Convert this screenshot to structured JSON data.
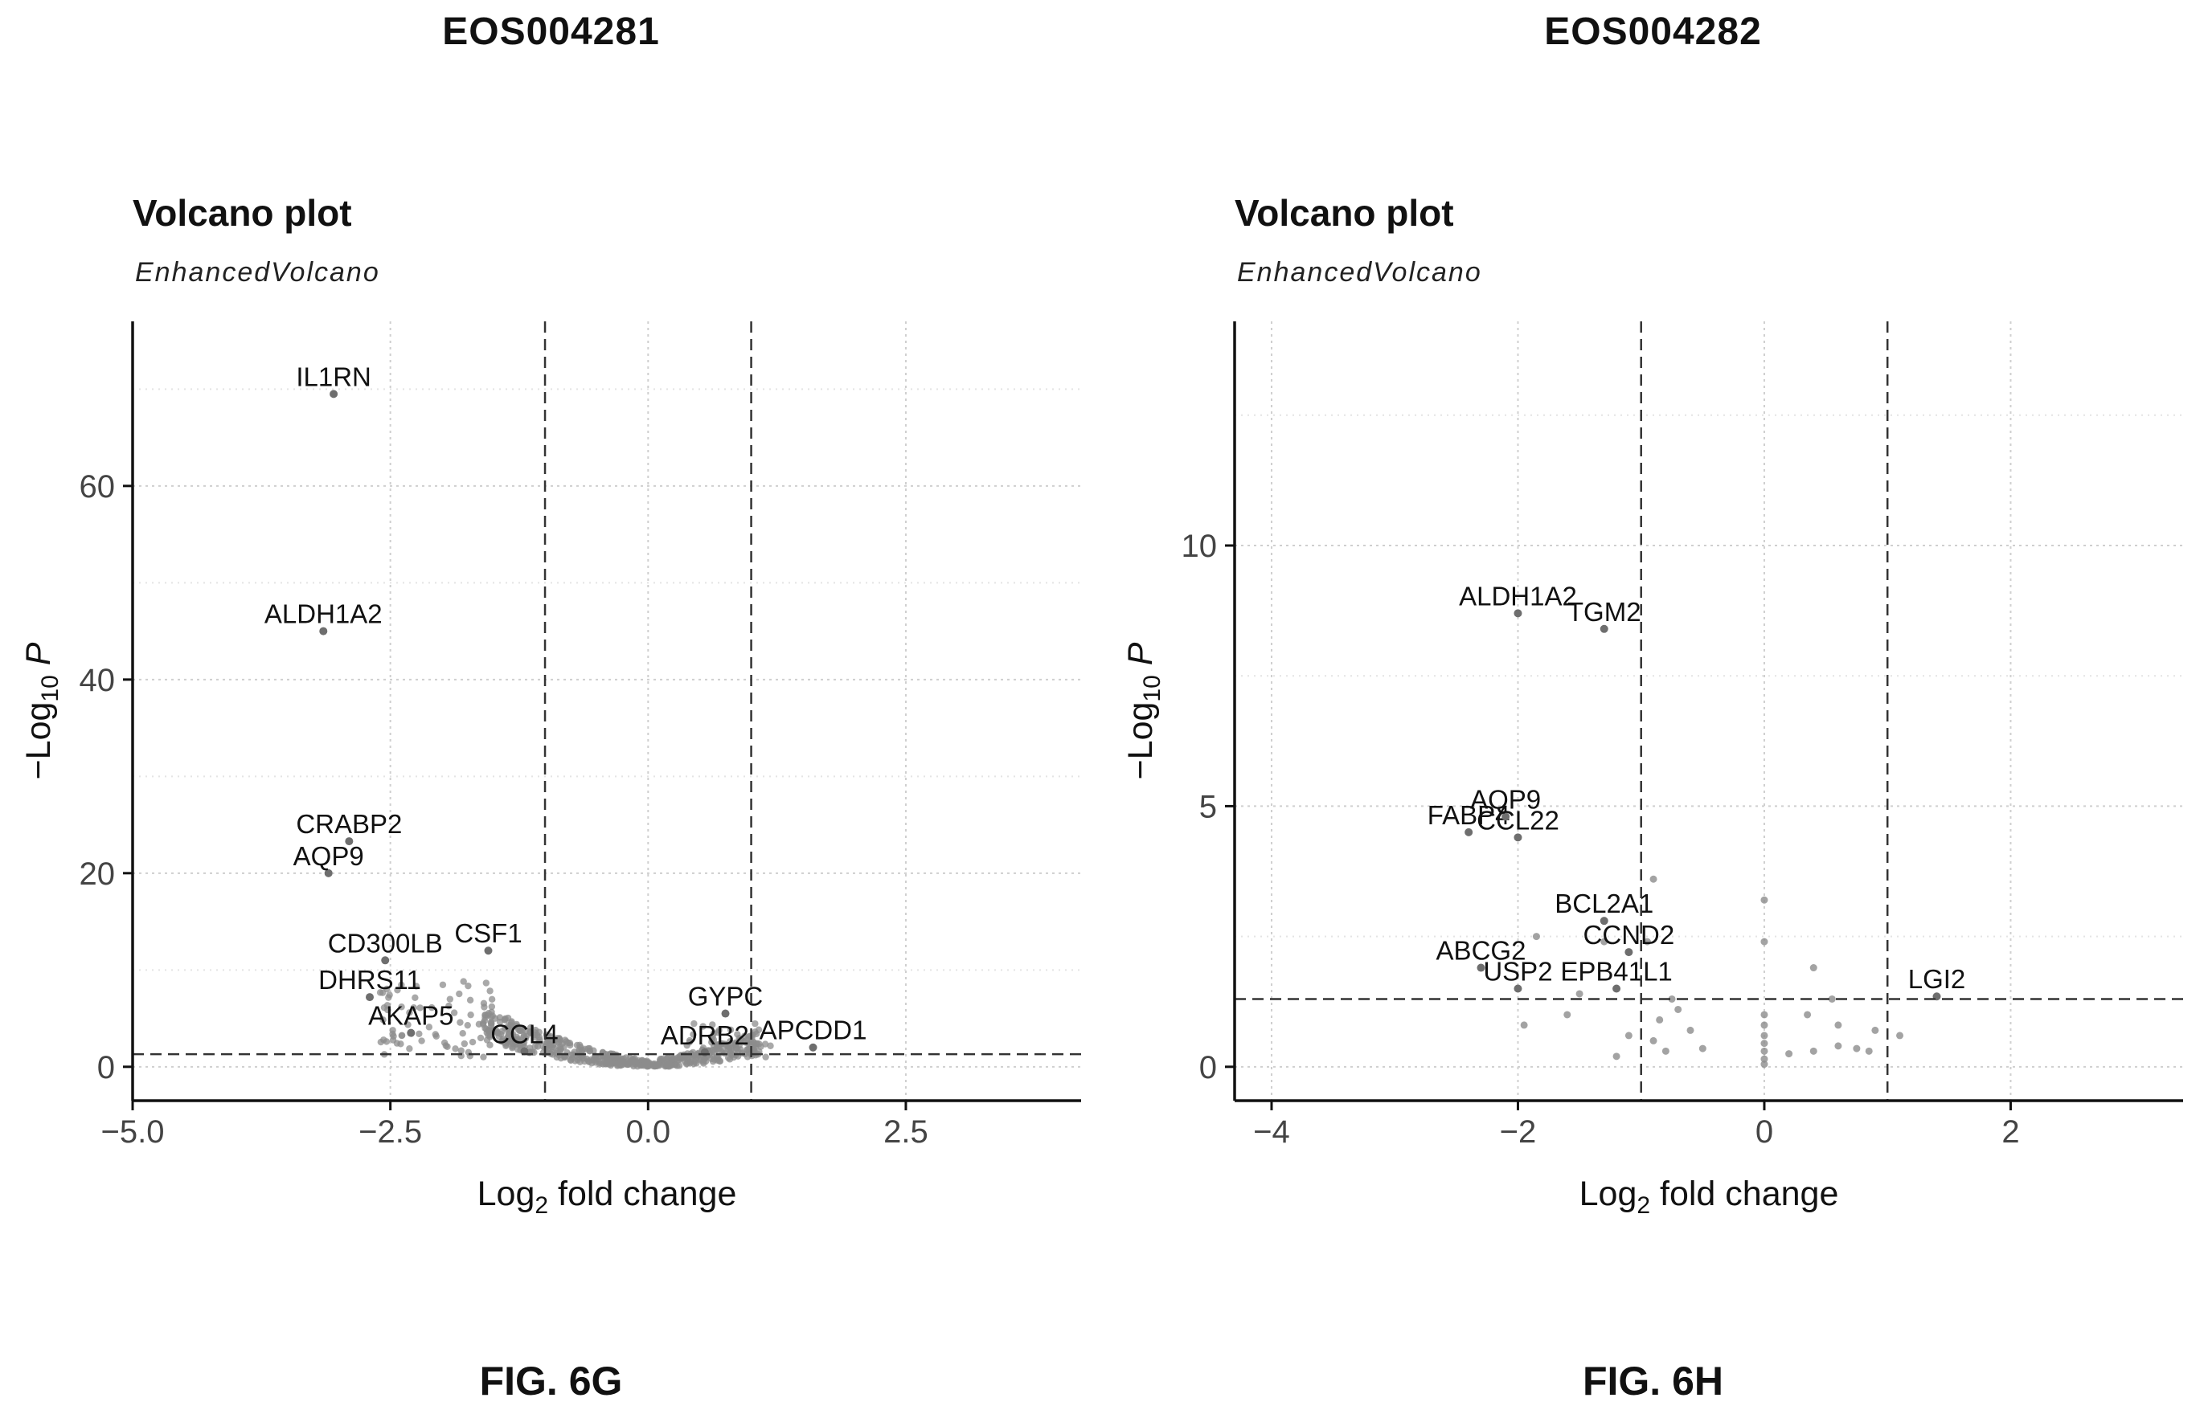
{
  "chart_data": [
    {
      "type": "scatter",
      "header": "EOS004281",
      "title": "Volcano plot",
      "subtitle": "EnhancedVolcano",
      "xlabel": "Log2 fold change",
      "ylabel": "−Log10 P",
      "figure_label": "FIG. 6G",
      "xlim": [
        -5.0,
        4.2
      ],
      "ylim": [
        -3.5,
        77
      ],
      "xticks": [
        -5.0,
        -2.5,
        0.0,
        2.5
      ],
      "xtick_labels": [
        "−5.0",
        "−2.5",
        "0.0",
        "2.5"
      ],
      "yticks": [
        0,
        20,
        40,
        60
      ],
      "ytick_labels": [
        "0",
        "20",
        "40",
        "60"
      ],
      "vlines": [
        -1,
        1
      ],
      "hline": 1.3,
      "grid": true,
      "labeled_points": [
        {
          "gene": "IL1RN",
          "x": -3.05,
          "y": 69.5
        },
        {
          "gene": "ALDH1A2",
          "x": -3.15,
          "y": 45.0
        },
        {
          "gene": "CRABP2",
          "x": -2.9,
          "y": 23.3
        },
        {
          "gene": "AQP9",
          "x": -3.1,
          "y": 20.0
        },
        {
          "gene": "CD300LB",
          "x": -2.55,
          "y": 11.0
        },
        {
          "gene": "CSF1",
          "x": -1.55,
          "y": 12.0
        },
        {
          "gene": "DHRS11",
          "x": -2.7,
          "y": 7.2
        },
        {
          "gene": "AKAP5",
          "x": -2.3,
          "y": 3.5
        },
        {
          "gene": "CCL4",
          "x": -1.2,
          "y": 1.6
        },
        {
          "gene": "GYPC",
          "x": 0.75,
          "y": 5.5
        },
        {
          "gene": "ADRB2",
          "x": 0.55,
          "y": 1.5
        },
        {
          "gene": "APCDD1",
          "x": 1.6,
          "y": 2.0
        }
      ]
    },
    {
      "type": "scatter",
      "header": "EOS004282",
      "title": "Volcano plot",
      "subtitle": "EnhancedVolcano",
      "xlabel": "Log2 fold change",
      "ylabel": "−Log10 P",
      "figure_label": "FIG. 6H",
      "xlim": [
        -4.3,
        3.4
      ],
      "ylim": [
        -0.65,
        14.3
      ],
      "xticks": [
        -4,
        -2,
        0,
        2
      ],
      "xtick_labels": [
        "−4",
        "−2",
        "0",
        "2"
      ],
      "yticks": [
        0,
        5,
        10
      ],
      "ytick_labels": [
        "0",
        "5",
        "10"
      ],
      "vlines": [
        -1,
        1
      ],
      "hline": 1.3,
      "grid": true,
      "labeled_points": [
        {
          "gene": "ALDH1A2",
          "x": -2.0,
          "y": 8.7
        },
        {
          "gene": "TGM2",
          "x": -1.3,
          "y": 8.4
        },
        {
          "gene": "FABP4",
          "x": -2.4,
          "y": 4.5
        },
        {
          "gene": "AQP9",
          "x": -2.1,
          "y": 4.8
        },
        {
          "gene": "CCL22",
          "x": -2.0,
          "y": 4.4
        },
        {
          "gene": "BCL2A1",
          "x": -1.3,
          "y": 2.8
        },
        {
          "gene": "ABCG2",
          "x": -2.3,
          "y": 1.9
        },
        {
          "gene": "CCND2",
          "x": -1.1,
          "y": 2.2
        },
        {
          "gene": "USP2",
          "x": -2.0,
          "y": 1.5
        },
        {
          "gene": "EPB41L1",
          "x": -1.2,
          "y": 1.5
        },
        {
          "gene": "LGI2",
          "x": 1.4,
          "y": 1.35
        }
      ]
    }
  ]
}
